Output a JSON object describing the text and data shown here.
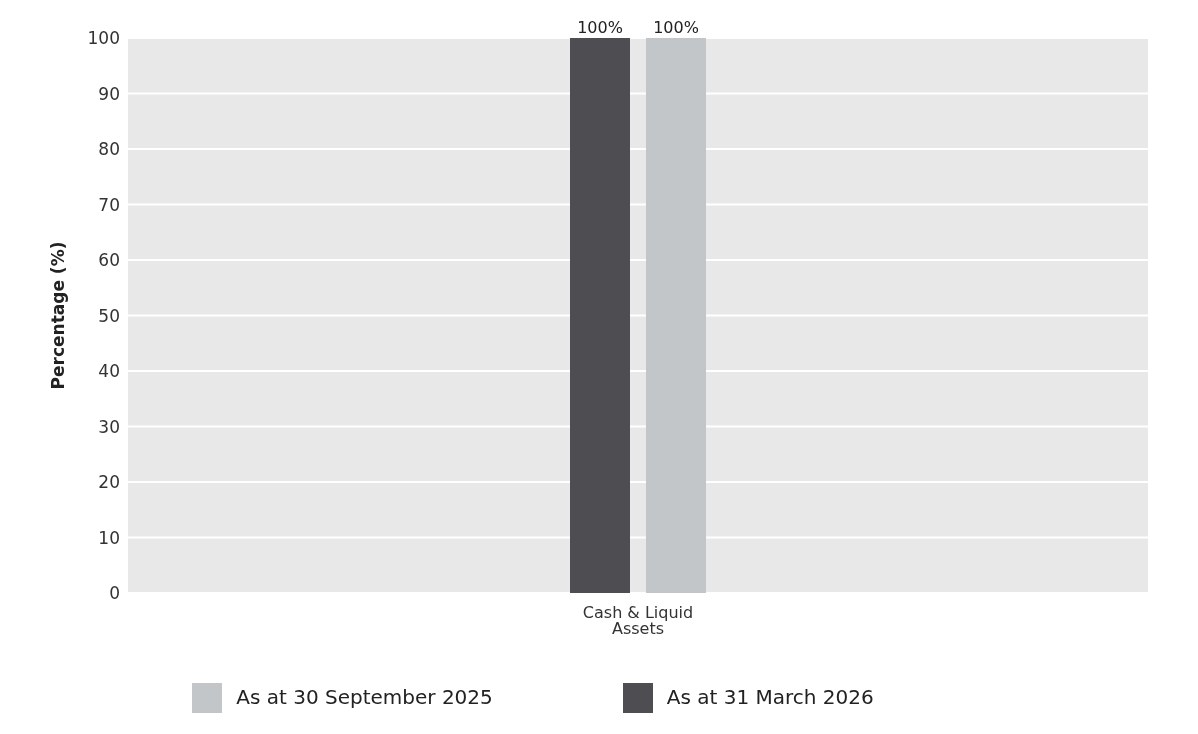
{
  "chart_data": {
    "type": "bar",
    "ylabel": "Percentage (%)",
    "categories": [
      "Cash & Liquid Assets"
    ],
    "series": [
      {
        "name": "As at 31 March 2026",
        "color": "#4d4d52",
        "values": [
          100
        ],
        "value_labels": [
          "100%"
        ]
      },
      {
        "name": "As at 30 September 2025",
        "color": "#c3c6c9",
        "values": [
          100
        ],
        "value_labels": [
          "100%"
        ]
      }
    ],
    "ylim": [
      0,
      100
    ],
    "yticks": [
      0,
      10,
      20,
      30,
      40,
      50,
      60,
      70,
      80,
      90,
      100
    ],
    "grid": "y",
    "legend": "bottom"
  }
}
